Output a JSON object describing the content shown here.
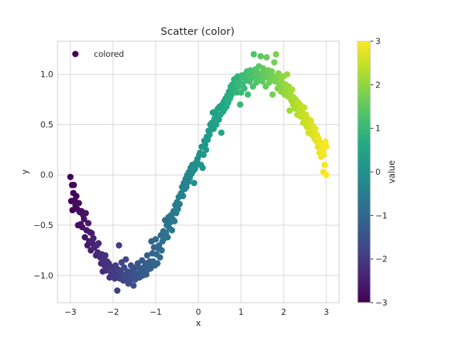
{
  "chart_data": {
    "type": "scatter",
    "title": "Scatter (color)",
    "xlabel": "x",
    "ylabel": "y",
    "xlim": [
      -3.3,
      3.3
    ],
    "ylim": [
      -1.27,
      1.33
    ],
    "xticks": [
      -3,
      -2,
      -1,
      0,
      1,
      2,
      3
    ],
    "yticks": [
      -1.0,
      -0.5,
      0.0,
      0.5,
      1.0
    ],
    "ytick_labels": [
      "−1.0",
      "−0.5",
      "0.0",
      "0.5",
      "1.0"
    ],
    "xtick_labels": [
      "−3",
      "−2",
      "−1",
      "0",
      "1",
      "2",
      "3"
    ],
    "grid": true,
    "legend": {
      "entries": [
        "colored"
      ],
      "placement": "upper-left"
    },
    "colorbar": {
      "label": "value",
      "colormap": "viridis",
      "range": [
        -3,
        3
      ],
      "ticks": [
        -3,
        -2,
        -1,
        0,
        1,
        2,
        3
      ],
      "tick_labels": [
        "−3",
        "−2",
        "−1",
        "0",
        "1",
        "2",
        "3"
      ]
    },
    "series": [
      {
        "name": "colored",
        "color_by": "x",
        "points": [
          [
            -3.0,
            -0.02
          ],
          [
            -2.98,
            -0.26
          ],
          [
            -2.96,
            -0.1
          ],
          [
            -2.95,
            -0.35
          ],
          [
            -2.93,
            -0.18
          ],
          [
            -2.92,
            -0.1
          ],
          [
            -2.9,
            -0.25
          ],
          [
            -2.88,
            -0.3
          ],
          [
            -2.86,
            -0.21
          ],
          [
            -2.84,
            -0.34
          ],
          [
            -2.82,
            -0.5
          ],
          [
            -2.8,
            -0.28
          ],
          [
            -2.78,
            -0.37
          ],
          [
            -2.76,
            -0.49
          ],
          [
            -2.74,
            -0.36
          ],
          [
            -2.72,
            -0.52
          ],
          [
            -2.7,
            -0.4
          ],
          [
            -2.68,
            -0.44
          ],
          [
            -2.66,
            -0.62
          ],
          [
            -2.64,
            -0.38
          ],
          [
            -2.62,
            -0.55
          ],
          [
            -2.6,
            -0.7
          ],
          [
            -2.58,
            -0.48
          ],
          [
            -2.56,
            -0.66
          ],
          [
            -2.54,
            -0.57
          ],
          [
            -2.52,
            -0.75
          ],
          [
            -2.5,
            -0.58
          ],
          [
            -2.48,
            -0.68
          ],
          [
            -2.46,
            -0.63
          ],
          [
            -2.44,
            -0.72
          ],
          [
            -2.4,
            -0.8
          ],
          [
            -2.38,
            -0.7
          ],
          [
            -2.36,
            -0.77
          ],
          [
            -2.34,
            -0.68
          ],
          [
            -2.3,
            -0.82
          ],
          [
            -2.28,
            -0.88
          ],
          [
            -2.26,
            -0.79
          ],
          [
            -2.24,
            -0.96
          ],
          [
            -2.22,
            -0.85
          ],
          [
            -2.2,
            -0.9
          ],
          [
            -2.18,
            -0.8
          ],
          [
            -2.16,
            -0.95
          ],
          [
            -2.14,
            -0.86
          ],
          [
            -2.12,
            -0.92
          ],
          [
            -2.1,
            -0.88
          ],
          [
            -2.08,
            -1.02
          ],
          [
            -2.06,
            -0.91
          ],
          [
            -2.04,
            -0.98
          ],
          [
            -2.02,
            -0.93
          ],
          [
            -2.0,
            -1.01
          ],
          [
            -1.98,
            -0.96
          ],
          [
            -1.96,
            -1.03
          ],
          [
            -1.94,
            -0.9
          ],
          [
            -1.92,
            -1.0
          ],
          [
            -1.9,
            -1.15
          ],
          [
            -1.88,
            -0.94
          ],
          [
            -1.86,
            -0.7
          ],
          [
            -1.84,
            -1.03
          ],
          [
            -1.82,
            -0.96
          ],
          [
            -1.8,
            -0.87
          ],
          [
            -1.78,
            -0.99
          ],
          [
            -1.76,
            -1.05
          ],
          [
            -1.74,
            -0.92
          ],
          [
            -1.72,
            -1.01
          ],
          [
            -1.7,
            -0.84
          ],
          [
            -1.68,
            -1.03
          ],
          [
            -1.66,
            -0.96
          ],
          [
            -1.64,
            -1.08
          ],
          [
            -1.62,
            -0.98
          ],
          [
            -1.6,
            -1.05
          ],
          [
            -1.58,
            -0.9
          ],
          [
            -1.56,
            -1.02
          ],
          [
            -1.54,
            -0.95
          ],
          [
            -1.52,
            -1.1
          ],
          [
            -1.5,
            -0.97
          ],
          [
            -1.48,
            -1.04
          ],
          [
            -1.46,
            -0.92
          ],
          [
            -1.44,
            -1.0
          ],
          [
            -1.42,
            -0.88
          ],
          [
            -1.4,
            -0.98
          ],
          [
            -1.38,
            -1.02
          ],
          [
            -1.36,
            -0.93
          ],
          [
            -1.34,
            -0.97
          ],
          [
            -1.32,
            -0.85
          ],
          [
            -1.3,
            -1.0
          ],
          [
            -1.28,
            -0.92
          ],
          [
            -1.26,
            -0.96
          ],
          [
            -1.24,
            -0.88
          ],
          [
            -1.22,
            -0.99
          ],
          [
            -1.2,
            -0.8
          ],
          [
            -1.18,
            -0.94
          ],
          [
            -1.16,
            -0.9
          ],
          [
            -1.14,
            -0.86
          ],
          [
            -1.12,
            -0.93
          ],
          [
            -1.1,
            -0.66
          ],
          [
            -1.08,
            -0.78
          ],
          [
            -1.06,
            -0.86
          ],
          [
            -1.04,
            -0.72
          ],
          [
            -1.02,
            -0.9
          ],
          [
            -1.0,
            -0.64
          ],
          [
            -0.98,
            -0.79
          ],
          [
            -0.96,
            -0.88
          ],
          [
            -0.94,
            -0.73
          ],
          [
            -0.92,
            -0.7
          ],
          [
            -0.9,
            -0.82
          ],
          [
            -0.88,
            -0.6
          ],
          [
            -0.86,
            -0.75
          ],
          [
            -0.84,
            -0.66
          ],
          [
            -0.82,
            -0.56
          ],
          [
            -0.8,
            -0.63
          ],
          [
            -0.78,
            -0.45
          ],
          [
            -0.76,
            -0.58
          ],
          [
            -0.74,
            -0.5
          ],
          [
            -0.72,
            -0.62
          ],
          [
            -0.7,
            -0.42
          ],
          [
            -0.68,
            -0.53
          ],
          [
            -0.66,
            -0.47
          ],
          [
            -0.64,
            -0.4
          ],
          [
            -0.62,
            -0.55
          ],
          [
            -0.6,
            -0.44
          ],
          [
            -0.58,
            -0.36
          ],
          [
            -0.56,
            -0.46
          ],
          [
            -0.54,
            -0.3
          ],
          [
            -0.52,
            -0.38
          ],
          [
            -0.5,
            -0.27
          ],
          [
            -0.48,
            -0.34
          ],
          [
            -0.46,
            -0.22
          ],
          [
            -0.44,
            -0.29
          ],
          [
            -0.42,
            -0.2
          ],
          [
            -0.4,
            -0.18
          ],
          [
            -0.38,
            -0.12
          ],
          [
            -0.36,
            -0.21
          ],
          [
            -0.34,
            -0.08
          ],
          [
            -0.32,
            -0.14
          ],
          [
            -0.3,
            -0.04
          ],
          [
            -0.28,
            -0.12
          ],
          [
            -0.26,
            0.0
          ],
          [
            -0.24,
            -0.07
          ],
          [
            -0.22,
            0.03
          ],
          [
            -0.2,
            -0.03
          ],
          [
            -0.18,
            0.07
          ],
          [
            -0.16,
            0.01
          ],
          [
            -0.14,
            0.1
          ],
          [
            -0.12,
            0.04
          ],
          [
            -0.1,
            -0.08
          ],
          [
            -0.08,
            0.06
          ],
          [
            -0.06,
            0.12
          ],
          [
            -0.04,
            0.1
          ],
          [
            -0.02,
            0.16
          ],
          [
            0.0,
            0.11
          ],
          [
            0.02,
            0.2
          ],
          [
            0.04,
            0.22
          ],
          [
            0.06,
            0.1
          ],
          [
            0.08,
            0.28
          ],
          [
            0.1,
            0.07
          ],
          [
            0.12,
            0.2
          ],
          [
            0.14,
            0.34
          ],
          [
            0.16,
            0.3
          ],
          [
            0.18,
            0.25
          ],
          [
            0.2,
            0.38
          ],
          [
            0.22,
            0.35
          ],
          [
            0.24,
            0.44
          ],
          [
            0.26,
            0.4
          ],
          [
            0.28,
            0.5
          ],
          [
            0.3,
            0.45
          ],
          [
            0.32,
            0.52
          ],
          [
            0.34,
            0.62
          ],
          [
            0.36,
            0.46
          ],
          [
            0.38,
            0.56
          ],
          [
            0.4,
            0.63
          ],
          [
            0.42,
            0.5
          ],
          [
            0.44,
            0.58
          ],
          [
            0.46,
            0.66
          ],
          [
            0.48,
            0.55
          ],
          [
            0.5,
            0.68
          ],
          [
            0.52,
            0.6
          ],
          [
            0.54,
            0.42
          ],
          [
            0.56,
            0.7
          ],
          [
            0.58,
            0.63
          ],
          [
            0.6,
            0.73
          ],
          [
            0.62,
            0.66
          ],
          [
            0.64,
            0.76
          ],
          [
            0.66,
            0.68
          ],
          [
            0.68,
            0.79
          ],
          [
            0.7,
            0.72
          ],
          [
            0.72,
            0.83
          ],
          [
            0.74,
            0.76
          ],
          [
            0.76,
            0.88
          ],
          [
            0.78,
            0.8
          ],
          [
            0.8,
            0.9
          ],
          [
            0.82,
            0.84
          ],
          [
            0.84,
            0.95
          ],
          [
            0.86,
            0.86
          ],
          [
            0.88,
            0.92
          ],
          [
            0.9,
            0.82
          ],
          [
            0.92,
            0.98
          ],
          [
            0.94,
            0.88
          ],
          [
            0.96,
            0.93
          ],
          [
            0.98,
            0.7
          ],
          [
            1.0,
            0.82
          ],
          [
            1.02,
            0.99
          ],
          [
            1.04,
            0.9
          ],
          [
            1.06,
            0.97
          ],
          [
            1.08,
            0.86
          ],
          [
            1.1,
            1.0
          ],
          [
            1.12,
            0.94
          ],
          [
            1.14,
            1.03
          ],
          [
            1.16,
            0.8
          ],
          [
            1.18,
            0.99
          ],
          [
            1.2,
            0.93
          ],
          [
            1.22,
            1.04
          ],
          [
            1.24,
            0.96
          ],
          [
            1.26,
            1.01
          ],
          [
            1.28,
            0.88
          ],
          [
            1.3,
            1.2
          ],
          [
            1.32,
            0.98
          ],
          [
            1.34,
            1.05
          ],
          [
            1.36,
            0.92
          ],
          [
            1.38,
            1.02
          ],
          [
            1.4,
            0.97
          ],
          [
            1.42,
            1.08
          ],
          [
            1.44,
            0.95
          ],
          [
            1.46,
            1.18
          ],
          [
            1.48,
            1.01
          ],
          [
            1.5,
            0.93
          ],
          [
            1.52,
            1.06
          ],
          [
            1.54,
            0.98
          ],
          [
            1.56,
            1.03
          ],
          [
            1.58,
            0.88
          ],
          [
            1.6,
            1.17
          ],
          [
            1.62,
            0.97
          ],
          [
            1.64,
            1.04
          ],
          [
            1.66,
            0.92
          ],
          [
            1.68,
            1.0
          ],
          [
            1.7,
            0.95
          ],
          [
            1.72,
            1.03
          ],
          [
            1.74,
            0.8
          ],
          [
            1.76,
            0.98
          ],
          [
            1.78,
            1.12
          ],
          [
            1.8,
            0.93
          ],
          [
            1.82,
            1.2
          ],
          [
            1.84,
            0.97
          ],
          [
            1.86,
            0.86
          ],
          [
            1.88,
            1.01
          ],
          [
            1.9,
            0.9
          ],
          [
            1.92,
            0.96
          ],
          [
            1.94,
            0.83
          ],
          [
            1.96,
            0.92
          ],
          [
            1.98,
            0.86
          ],
          [
            2.0,
            0.98
          ],
          [
            2.02,
            0.8
          ],
          [
            2.04,
            0.9
          ],
          [
            2.06,
            0.84
          ],
          [
            2.08,
            1.0
          ],
          [
            2.1,
            0.78
          ],
          [
            2.12,
            0.88
          ],
          [
            2.14,
            0.64
          ],
          [
            2.16,
            0.8
          ],
          [
            2.18,
            0.74
          ],
          [
            2.2,
            0.85
          ],
          [
            2.22,
            0.7
          ],
          [
            2.24,
            0.77
          ],
          [
            2.26,
            0.66
          ],
          [
            2.28,
            0.75
          ],
          [
            2.3,
            0.69
          ],
          [
            2.32,
            0.6
          ],
          [
            2.34,
            0.72
          ],
          [
            2.36,
            0.64
          ],
          [
            2.38,
            0.7
          ],
          [
            2.4,
            0.58
          ],
          [
            2.42,
            0.66
          ],
          [
            2.44,
            0.62
          ],
          [
            2.46,
            0.52
          ],
          [
            2.48,
            0.67
          ],
          [
            2.5,
            0.55
          ],
          [
            2.52,
            0.6
          ],
          [
            2.54,
            0.48
          ],
          [
            2.56,
            0.56
          ],
          [
            2.58,
            0.42
          ],
          [
            2.6,
            0.51
          ],
          [
            2.62,
            0.46
          ],
          [
            2.64,
            0.54
          ],
          [
            2.66,
            0.4
          ],
          [
            2.68,
            0.49
          ],
          [
            2.7,
            0.44
          ],
          [
            2.72,
            0.36
          ],
          [
            2.74,
            0.46
          ],
          [
            2.76,
            0.34
          ],
          [
            2.78,
            0.4
          ],
          [
            2.8,
            0.28
          ],
          [
            2.82,
            0.36
          ],
          [
            2.84,
            0.22
          ],
          [
            2.86,
            0.32
          ],
          [
            2.88,
            0.18
          ],
          [
            2.9,
            0.3
          ],
          [
            2.92,
            0.25
          ],
          [
            2.94,
            0.2
          ],
          [
            2.96,
            0.1
          ],
          [
            2.98,
            0.33
          ],
          [
            3.0,
            0.28
          ],
          [
            2.93,
            0.03
          ],
          [
            3.0,
            0.0
          ]
        ]
      }
    ]
  }
}
